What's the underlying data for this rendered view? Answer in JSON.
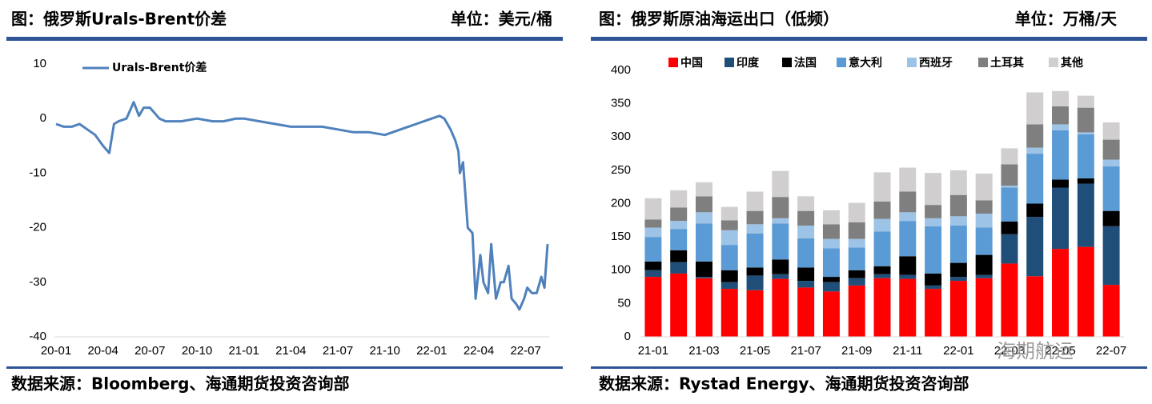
{
  "chart_data": [
    {
      "type": "line",
      "title": "图：俄罗斯Urals-Brent价差",
      "unit": "单位：美元/桶",
      "source": "数据来源：Bloomberg、海通期货投资咨询部",
      "x": [
        0,
        0.5,
        1,
        1.5,
        2,
        2.5,
        3,
        3.4,
        3.7,
        4,
        4.5,
        4.96,
        5.3,
        5.6,
        6,
        6.6,
        7,
        8,
        9,
        10,
        10.7,
        11.5,
        12,
        13,
        14,
        15,
        16,
        17,
        18,
        19,
        20,
        21,
        21.5,
        22,
        22.5,
        23,
        23.5,
        24,
        24.5,
        24.8,
        25.2,
        25.5,
        25.7,
        25.8,
        26,
        26.3,
        26.6,
        26.8,
        27.1,
        27.3,
        27.6,
        27.8,
        28.1,
        28.4,
        28.6,
        28.9,
        29.1,
        29.4,
        29.6,
        29.9,
        30.1,
        30.4,
        30.7,
        31,
        31.2,
        31.4
      ],
      "series": [
        {
          "name": "Urals-Brent价差",
          "color": "#4f81bd",
          "values": [
            -1,
            -1.5,
            -1.5,
            -1,
            -2,
            -3,
            -5,
            -6.3,
            -1,
            -0.5,
            0,
            3,
            0.5,
            2,
            2,
            0,
            -0.5,
            -0.5,
            0,
            -0.5,
            -0.5,
            0,
            0,
            -0.5,
            -1,
            -1.5,
            -1.5,
            -1.5,
            -2,
            -2.5,
            -2.5,
            -3,
            -2.5,
            -2,
            -1.5,
            -1,
            -0.5,
            0,
            0.5,
            0,
            -2,
            -4,
            -6,
            -10,
            -8,
            -20,
            -21,
            -33,
            -25,
            -30,
            -32,
            -23,
            -33,
            -30,
            -30,
            -27,
            -33,
            -34,
            -35,
            -33,
            -31,
            -32,
            -32,
            -29,
            -31,
            -23
          ]
        }
      ],
      "xlim": [
        0,
        31.5
      ],
      "xticks": [
        {
          "value": 0,
          "label": "20-01"
        },
        {
          "value": 3,
          "label": "20-04"
        },
        {
          "value": 6,
          "label": "20-07"
        },
        {
          "value": 9,
          "label": "20-10"
        },
        {
          "value": 12,
          "label": "21-01"
        },
        {
          "value": 15,
          "label": "21-04"
        },
        {
          "value": 18,
          "label": "21-07"
        },
        {
          "value": 21,
          "label": "21-10"
        },
        {
          "value": 24,
          "label": "22-01"
        },
        {
          "value": 27,
          "label": "22-04"
        },
        {
          "value": 30,
          "label": "22-07"
        }
      ],
      "ylim": [
        -40,
        10
      ],
      "yticks": [
        -40,
        -30,
        -20,
        -10,
        0,
        10
      ]
    },
    {
      "type": "bar",
      "title": "图：俄罗斯原油海运出口（低频）",
      "unit": "单位：万桶/天",
      "source": "数据来源：Rystad Energy、海通期货投资咨询部",
      "stacked": true,
      "categories": [
        "21-01",
        null,
        "21-03",
        null,
        "21-05",
        null,
        "21-07",
        null,
        "21-09",
        null,
        "21-11",
        null,
        "22-01",
        null,
        "22-03",
        null,
        "22-05",
        null,
        "22-07"
      ],
      "series": [
        {
          "name": "中国",
          "color": "#ff0000",
          "values": [
            90,
            95,
            88,
            72,
            70,
            87,
            74,
            68,
            77,
            88,
            87,
            72,
            84,
            88,
            110,
            91,
            132,
            135,
            78
          ]
        },
        {
          "name": "印度",
          "color": "#1f4e79",
          "values": [
            10,
            17,
            2,
            10,
            22,
            7,
            10,
            14,
            11,
            6,
            6,
            5,
            6,
            5,
            44,
            89,
            92,
            95,
            88
          ]
        },
        {
          "name": "法国",
          "color": "#000000",
          "values": [
            13,
            18,
            23,
            18,
            12,
            22,
            20,
            8,
            12,
            12,
            28,
            18,
            21,
            30,
            19,
            20,
            12,
            8,
            23
          ]
        },
        {
          "name": "意大利",
          "color": "#5b9bd5",
          "values": [
            37,
            32,
            57,
            38,
            51,
            54,
            44,
            43,
            34,
            52,
            53,
            71,
            56,
            41,
            51,
            75,
            74,
            66,
            67
          ]
        },
        {
          "name": "西班牙",
          "color": "#9dc3e6",
          "values": [
            14,
            12,
            17,
            22,
            14,
            8,
            19,
            14,
            13,
            19,
            13,
            12,
            14,
            21,
            3,
            9,
            9,
            3,
            10
          ]
        },
        {
          "name": "土耳其",
          "color": "#7f7f7f",
          "values": [
            12,
            20,
            24,
            15,
            20,
            32,
            22,
            22,
            25,
            26,
            31,
            20,
            32,
            20,
            32,
            35,
            27,
            37,
            30
          ]
        },
        {
          "name": "其他",
          "color": "#d0cece",
          "values": [
            32,
            26,
            21,
            20,
            29,
            39,
            22,
            21,
            29,
            44,
            36,
            48,
            37,
            40,
            24,
            48,
            23,
            18,
            26
          ]
        }
      ],
      "ylim": [
        0,
        400
      ],
      "yticks": [
        0,
        50,
        100,
        150,
        200,
        250,
        300,
        350,
        400
      ]
    }
  ],
  "watermark": "海期航运"
}
